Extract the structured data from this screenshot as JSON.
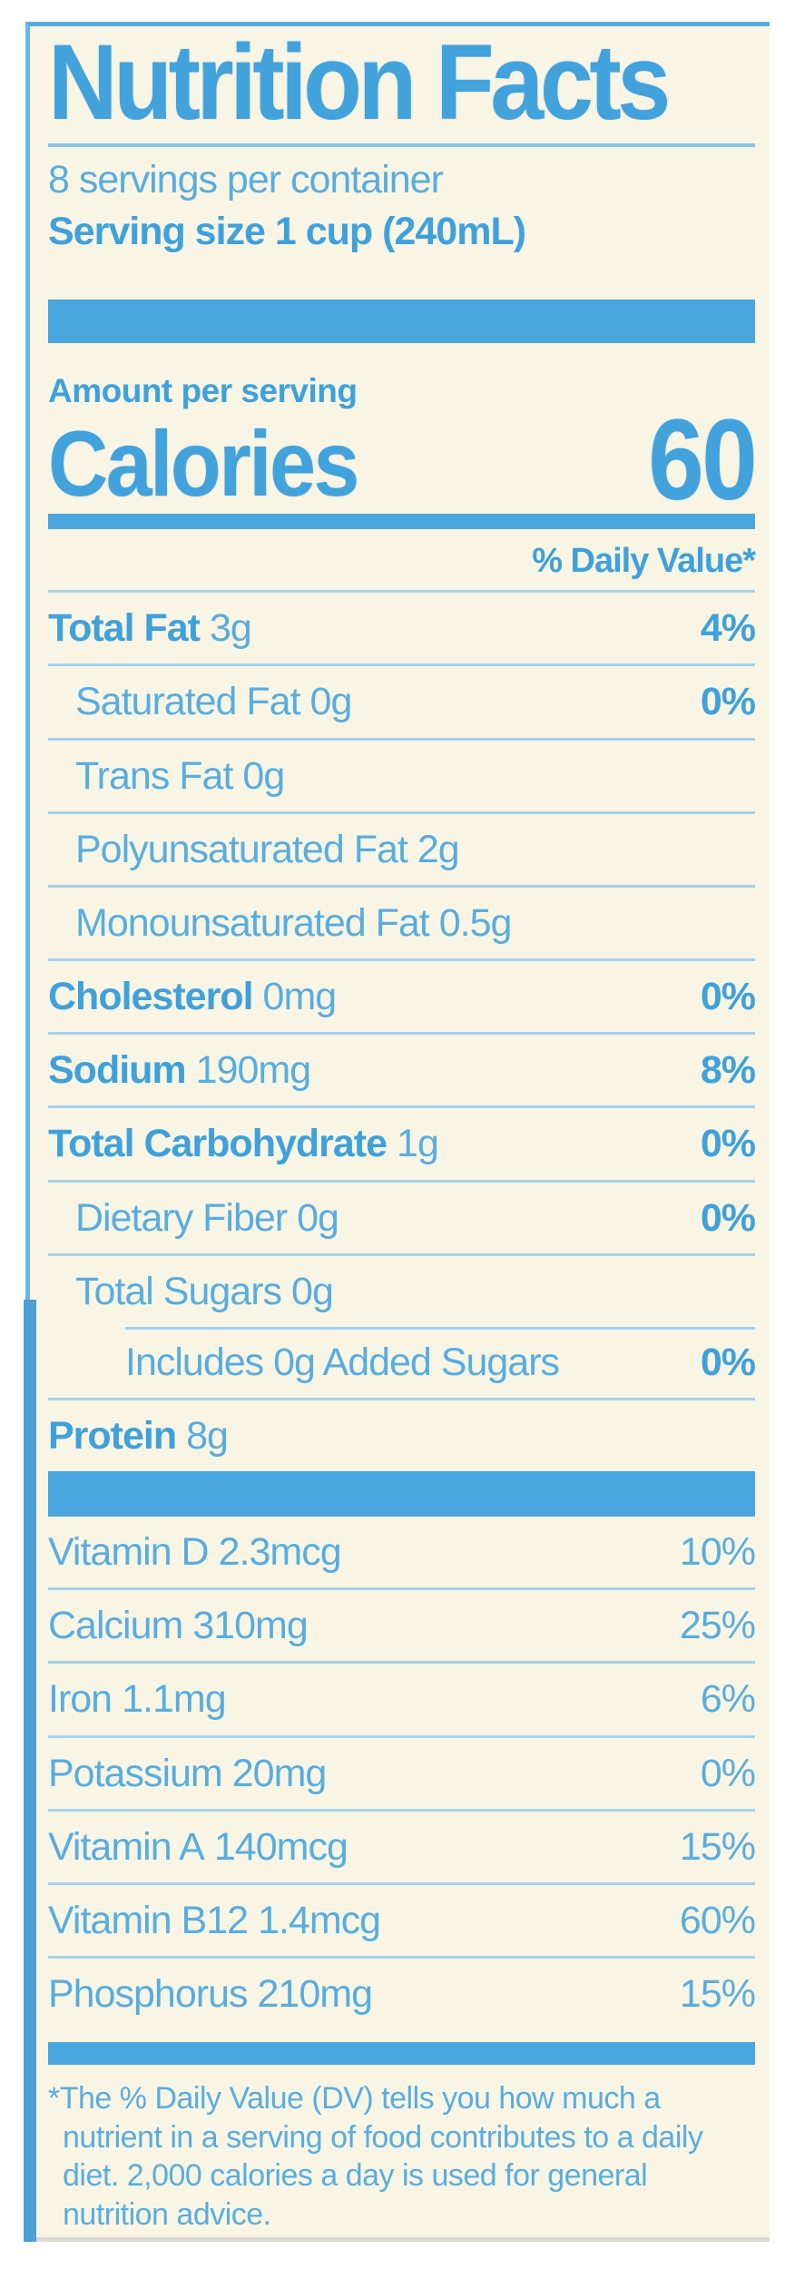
{
  "colors": {
    "accent_blue": "#4aa6de",
    "bold_text_blue": "#3fa1db",
    "light_text_blue": "#58ade0",
    "divider_blue": "#a3d1ee",
    "label_background": "#f9f5e4",
    "page_background": "#ffffff"
  },
  "nutrition": {
    "title": "Nutrition Facts",
    "servings_per_container": "8 servings per container",
    "serving_size": "Serving size 1 cup (240mL)",
    "amount_per_serving": "Amount per serving",
    "calories_label": "Calories",
    "calories_value": "60",
    "daily_value_header": "% Daily Value*",
    "rows": [
      {
        "label": "Total Fat",
        "amount": "3g",
        "dv": "4%"
      },
      {
        "label": "Saturated Fat",
        "amount": "0g",
        "dv": "0%"
      },
      {
        "label": "Trans Fat",
        "amount": "0g",
        "dv": ""
      },
      {
        "label": "Polyunsaturated Fat",
        "amount": "2g",
        "dv": ""
      },
      {
        "label": "Monounsaturated Fat",
        "amount": "0.5g",
        "dv": ""
      },
      {
        "label": "Cholesterol",
        "amount": "0mg",
        "dv": "0%"
      },
      {
        "label": "Sodium",
        "amount": "190mg",
        "dv": "8%"
      },
      {
        "label": "Total Carbohydrate",
        "amount": "1g",
        "dv": "0%"
      },
      {
        "label": "Dietary Fiber",
        "amount": "0g",
        "dv": "0%"
      },
      {
        "label": "Total Sugars",
        "amount": "0g",
        "dv": ""
      },
      {
        "label": "Includes 0g Added Sugars",
        "amount": "",
        "dv": "0%"
      },
      {
        "label": "Protein",
        "amount": "8g",
        "dv": ""
      }
    ],
    "vitamins": [
      {
        "label": "Vitamin D",
        "amount": "2.3mcg",
        "dv": "10%"
      },
      {
        "label": "Calcium",
        "amount": "310mg",
        "dv": "25%"
      },
      {
        "label": "Iron",
        "amount": "1.1mg",
        "dv": "6%"
      },
      {
        "label": "Potassium",
        "amount": "20mg",
        "dv": "0%"
      },
      {
        "label": "Vitamin A",
        "amount": "140mcg",
        "dv": "15%"
      },
      {
        "label": "Vitamin B12",
        "amount": "1.4mcg",
        "dv": "60%"
      },
      {
        "label": "Phosphorus",
        "amount": "210mg",
        "dv": "15%"
      }
    ],
    "footnote": "*The % Daily Value (DV) tells you how much a nutrient in a serving of food contributes to a daily diet. 2,000 calories a day is used for general nutrition advice."
  }
}
